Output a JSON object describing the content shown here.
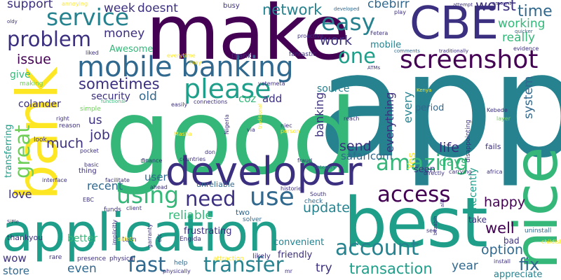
{
  "colors": {
    "background": "#ffffff",
    "dark_purple": "#440154",
    "indigo": "#3b2f7f",
    "blue": "#31688e",
    "teal": "#26828e",
    "teal_green": "#1f9e89",
    "green": "#35b779",
    "light_green": "#6ece58",
    "lime": "#b5de2b",
    "yellow": "#fde725"
  },
  "words": {
    "app": "app",
    "good": "good",
    "make": "make",
    "best": "best",
    "application": "application",
    "bank": "bank",
    "nice": "nice",
    "developer": "developer",
    "CBE": "CBE",
    "mobile_banking": "mobile banking",
    "screenshot": "screenshot",
    "service": "service",
    "problem": "problem",
    "please": "please",
    "using": "using",
    "use": "use",
    "need": "need",
    "access": "access",
    "account": "account",
    "amazing": "amazing",
    "transfer": "transfer",
    "fast": "fast",
    "easy": "easy",
    "great": "great",
    "one": "one",
    "time": "time",
    "issue": "issue",
    "transaction": "transaction",
    "option": "option",
    "fix": "fix",
    "update": "update",
    "well": "well",
    "happy": "happy",
    "sometimes": "sometimes",
    "network": "network",
    "work": "work",
    "worst": "worst",
    "money": "money",
    "week": "week",
    "doesnt": "doesnt",
    "support": "support",
    "cbebirr": "cbebirr",
    "working": "working",
    "really": "really",
    "mobile": "mobile",
    "Awesome": "Awesome",
    "security": "security",
    "old": "old",
    "coz": "coz",
    "add": "add",
    "source": "source",
    "go": "go",
    "system": "system",
    "banking": "banking",
    "everything": "everything",
    "every": "every",
    "period": "period",
    "send": "send",
    "life": "life",
    "days": "days",
    "safaricom": "safaricom",
    "job": "job",
    "us": "us",
    "much": "much",
    "colander": "colander",
    "give": "give",
    "transferring": "transferring",
    "love": "love",
    "recent": "recent",
    "user": "user",
    "seen": "seen",
    "Yes": "Yes",
    "Recently": "Recently",
    "reliable": "reliable",
    "better": "better",
    "year": "year",
    "try": "try",
    "even": "even",
    "store": "store",
    "wow": "wow",
    "thankyou": "thankyou",
    "appreciate": "appreciate",
    "convenient": "convenient",
    "friendly": "friendly",
    "take": "take",
    "bad": "bad",
    "uninstall": "uninstall",
    "childish": "childish",
    "frustrating": "frustrating",
    "unreliable": "unreliable",
    "two": "two",
    "solver": "solver",
    "check": "check",
    "funds": "funds",
    "turn": "turn",
    "physical": "physical",
    "physically": "physically",
    "likely": "likely",
    "help": "help",
    "attraction": "attraction",
    "presence": "presence",
    "rare": "rare",
    "making": "making",
    "right": "right",
    "reason": "reason",
    "simple": "simple",
    "functional": "functional",
    "look": "look",
    "pocket": "pocket",
    "basic": "basic",
    "thing": "thing",
    "interface": "interface",
    "facilitate": "facilitate",
    "EBC": "EBC",
    "ahead": "ahead",
    "client": "client",
    "used": "used",
    "finance": "finance",
    "don": "don",
    "countries": "countries",
    "Nigeria": "Nigeria",
    "via": "via",
    "Masha": "Masha",
    "easily": "easily",
    "connections": "connections",
    "yetemeta": "yetemeta",
    "traditional": "traditional",
    "niec": "niec",
    "person": "person",
    "fraud": "fraud",
    "category": "category",
    "directly": "directly",
    "histories": "histories",
    "South": "South",
    "carrying": "carrying",
    "africa": "africa",
    "fails": "fails",
    "disappointing": "disappointing",
    "layer": "layer",
    "Kebede": "Kebede",
    "reach": "reach",
    "Kenya": "Kenya",
    "everytime": "everytime",
    "thank": "thank",
    "fantastic": "fantastic",
    "proactive": "proactive",
    "Fetera": "Fetera",
    "comments": "comments",
    "traditionally": "traditionally",
    "evidence": "evidence",
    "quicker": "quicker",
    "attempt": "attempt",
    "amount": "amount",
    "developed": "developed",
    "play": "play",
    "busy": "busy",
    "annoying": "annoying",
    "oldy": "oldy",
    "liked": "liked",
    "may": "may",
    "ATMs": "ATMs",
    "SiPle": "SiPle",
    "Engida": "Engida",
    "see": "see",
    "install": "install",
    "bezabih": "bezabih",
    "implicitly": "implicitly",
    "safety": "safety",
    "etc": "etc",
    "garranty": "garranty",
    "alla": "alla",
    "mr": "mr"
  }
}
